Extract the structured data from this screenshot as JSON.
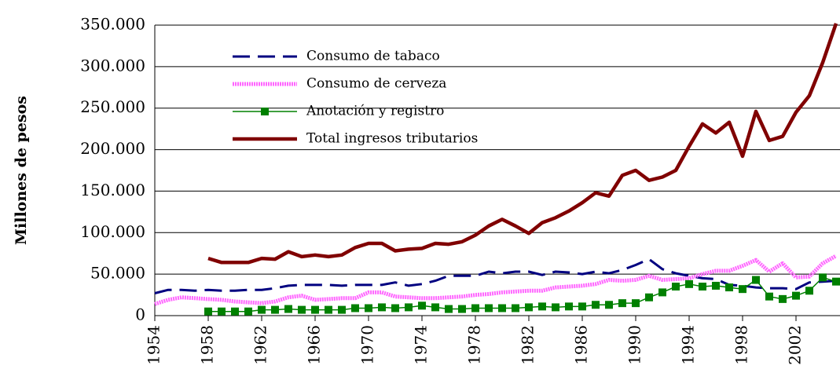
{
  "chart_data": {
    "type": "line",
    "y_label": "Millones de pesos",
    "x": [
      1954,
      1955,
      1956,
      1957,
      1958,
      1959,
      1960,
      1961,
      1962,
      1963,
      1964,
      1965,
      1966,
      1967,
      1968,
      1969,
      1970,
      1971,
      1972,
      1973,
      1974,
      1975,
      1976,
      1977,
      1978,
      1979,
      1980,
      1981,
      1982,
      1983,
      1984,
      1985,
      1986,
      1987,
      1988,
      1989,
      1990,
      1991,
      1992,
      1993,
      1994,
      1995,
      1996,
      1997,
      1998,
      1999,
      2000,
      2001,
      2002,
      2003,
      2004,
      2005
    ],
    "xlim": [
      1954,
      2005
    ],
    "xticks": [
      1954,
      1958,
      1962,
      1966,
      1970,
      1974,
      1978,
      1982,
      1986,
      1990,
      1994,
      1998,
      2002
    ],
    "ylim": [
      0,
      350000
    ],
    "yticks": [
      0,
      {
        "value": 50000,
        "label": "50.000"
      },
      {
        "value": 100000,
        "label": "100.000"
      },
      {
        "value": 150000,
        "label": "150.000"
      },
      {
        "value": 200000,
        "label": "200.000"
      },
      {
        "value": 250000,
        "label": "250.000"
      },
      {
        "value": 300000,
        "label": "300.000"
      },
      {
        "value": 350000,
        "label": "350.000"
      }
    ],
    "grid": true,
    "legend": "upper left",
    "series": [
      {
        "name": "Consumo de tabaco",
        "color": "#000080",
        "values": [
          27000,
          31000,
          31000,
          30000,
          31000,
          30000,
          30000,
          31000,
          31000,
          33000,
          36000,
          37000,
          37000,
          37000,
          36000,
          37000,
          37000,
          37000,
          40000,
          36000,
          38000,
          42000,
          48000,
          48000,
          48000,
          53000,
          51000,
          53000,
          53000,
          49000,
          53000,
          52000,
          50000,
          53000,
          51000,
          55000,
          61000,
          68000,
          56000,
          51000,
          48000,
          45000,
          44000,
          37000,
          36000,
          34000,
          33000,
          33000,
          32000,
          40000,
          41000,
          42000
        ]
      },
      {
        "name": "Consumo de cerveza",
        "color": "#ff66ff",
        "values": [
          14000,
          19000,
          22000,
          21000,
          20000,
          19000,
          17000,
          16000,
          15000,
          17000,
          22000,
          24000,
          19000,
          20000,
          21000,
          21000,
          28000,
          28000,
          23000,
          22000,
          21000,
          21000,
          22000,
          23000,
          25000,
          26000,
          28000,
          29000,
          30000,
          30000,
          34000,
          35000,
          36000,
          38000,
          43000,
          42000,
          43000,
          48000,
          43000,
          44000,
          45000,
          50000,
          54000,
          54000,
          60000,
          67000,
          53000,
          63000,
          46000,
          47000,
          63000,
          72000
        ]
      },
      {
        "name": "Anotación y registro",
        "color": "#008000",
        "values": [
          null,
          null,
          null,
          null,
          5000,
          5000,
          5000,
          5000,
          7000,
          7000,
          8000,
          7000,
          7000,
          7000,
          7000,
          9000,
          9000,
          10000,
          9000,
          10000,
          12000,
          10000,
          8000,
          8000,
          9000,
          9000,
          9000,
          9000,
          10000,
          11000,
          10000,
          11000,
          11000,
          13000,
          13000,
          15000,
          15000,
          22000,
          28000,
          35000,
          38000,
          35000,
          36000,
          34000,
          32000,
          43000,
          23000,
          20000,
          24000,
          30000,
          46000,
          41000
        ]
      },
      {
        "name": "Total ingresos tributarios",
        "color": "#800000",
        "values": [
          null,
          null,
          null,
          null,
          69000,
          64000,
          64000,
          64000,
          69000,
          68000,
          77000,
          71000,
          73000,
          71000,
          73000,
          82000,
          87000,
          87000,
          78000,
          80000,
          81000,
          87000,
          86000,
          89000,
          97000,
          108000,
          116000,
          108000,
          99000,
          112000,
          118000,
          126000,
          136000,
          148000,
          144000,
          169000,
          175000,
          163000,
          167000,
          175000,
          204000,
          231000,
          220000,
          233000,
          192000,
          246000,
          211000,
          216000,
          245000,
          265000,
          305000,
          352000
        ]
      }
    ]
  }
}
